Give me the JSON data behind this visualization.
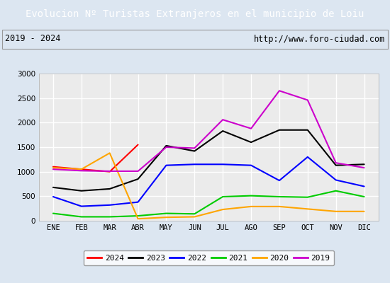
{
  "title": "Evolucion Nº Turistas Extranjeros en el municipio de Loiu",
  "subtitle_left": "2019 - 2024",
  "subtitle_right": "http://www.foro-ciudad.com",
  "months": [
    "ENE",
    "FEB",
    "MAR",
    "ABR",
    "MAY",
    "JUN",
    "JUL",
    "AGO",
    "SEP",
    "OCT",
    "NOV",
    "DIC"
  ],
  "series": {
    "2024": [
      1100,
      1050,
      1000,
      1550,
      null,
      null,
      null,
      null,
      null,
      null,
      null,
      null
    ],
    "2023": [
      680,
      610,
      650,
      850,
      1530,
      1420,
      1830,
      1600,
      1850,
      1850,
      1130,
      1150
    ],
    "2022": [
      490,
      295,
      320,
      380,
      1130,
      1150,
      1150,
      1130,
      820,
      1300,
      830,
      700
    ],
    "2021": [
      150,
      80,
      80,
      100,
      150,
      140,
      490,
      510,
      490,
      480,
      610,
      490
    ],
    "2020": [
      1080,
      1050,
      1380,
      40,
      70,
      80,
      230,
      290,
      290,
      240,
      190,
      190
    ],
    "2019": [
      1050,
      1020,
      1010,
      1010,
      1500,
      1480,
      2060,
      1880,
      2650,
      2460,
      1180,
      1080
    ]
  },
  "colors": {
    "2024": "#ff0000",
    "2023": "#000000",
    "2022": "#0000ff",
    "2021": "#00cc00",
    "2020": "#ffa500",
    "2019": "#cc00cc"
  },
  "ylim": [
    0,
    3000
  ],
  "yticks": [
    0,
    500,
    1000,
    1500,
    2000,
    2500,
    3000
  ],
  "title_bg_color": "#4472c4",
  "title_text_color": "#ffffff",
  "plot_bg_color": "#ebebeb",
  "outer_bg_color": "#dce6f1",
  "grid_color": "#ffffff",
  "legend_order": [
    "2024",
    "2023",
    "2022",
    "2021",
    "2020",
    "2019"
  ]
}
